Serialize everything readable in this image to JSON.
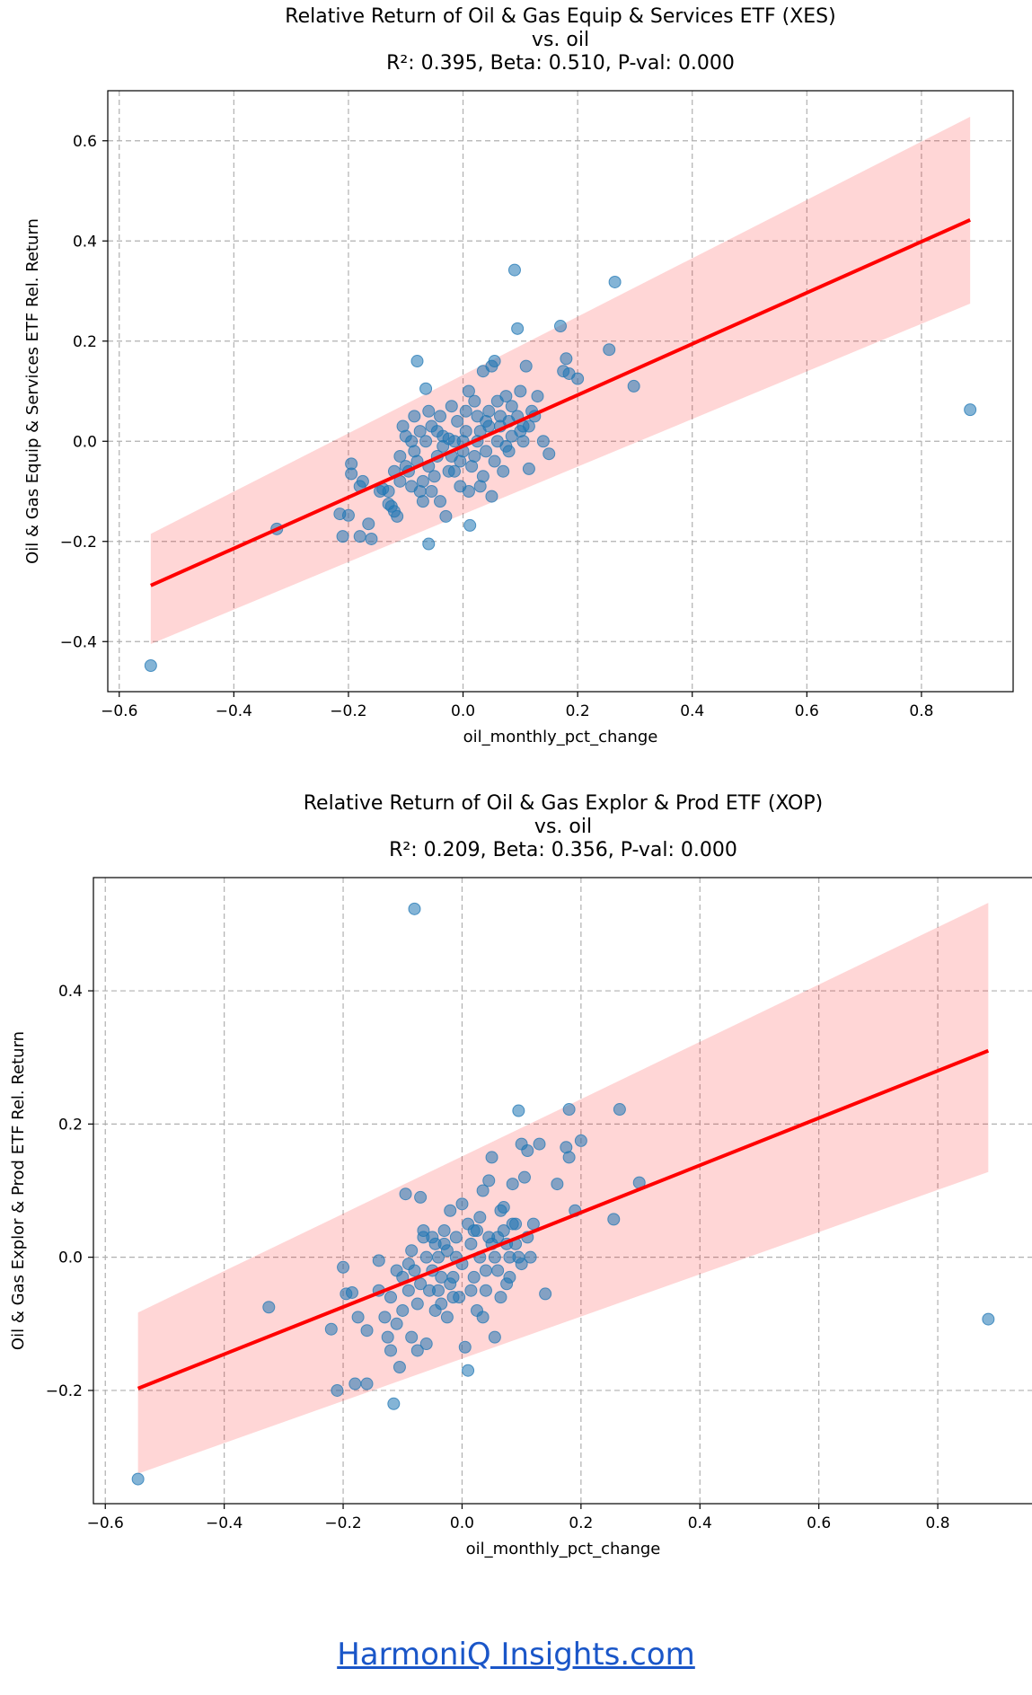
{
  "footer": {
    "link_text": "HarmoniQ Insights.com"
  },
  "chart_data": [
    {
      "type": "scatter",
      "title_lines": [
        "Relative Return of Oil & Gas Equip & Services ETF (XES)",
        "vs. oil",
        "R²: 0.395, Beta: 0.510, P-val: 0.000"
      ],
      "xlabel": "oil_monthly_pct_change",
      "ylabel": "Oil & Gas Equip & Services ETF Rel. Return",
      "xlim": [
        -0.62,
        0.96
      ],
      "ylim": [
        -0.5,
        0.7
      ],
      "xticks": [
        -0.6,
        -0.4,
        -0.2,
        0.0,
        0.2,
        0.4,
        0.6,
        0.8
      ],
      "yticks": [
        -0.4,
        -0.2,
        0.0,
        0.2,
        0.4,
        0.6
      ],
      "xtick_labels": [
        "−0.6",
        "−0.4",
        "−0.2",
        "0.0",
        "0.2",
        "0.4",
        "0.6",
        "0.8"
      ],
      "ytick_labels": [
        "−0.4",
        "−0.2",
        "0.0",
        "0.2",
        "0.4",
        "0.6"
      ],
      "grid": true,
      "regression": {
        "x": [
          -0.545,
          0.885
        ],
        "y": [
          -0.288,
          0.442
        ]
      },
      "ci_band": {
        "x": [
          -0.545,
          0.885
        ],
        "upper": [
          -0.185,
          0.648
        ],
        "lower": [
          -0.405,
          0.275
        ]
      },
      "points": [
        [
          -0.545,
          -0.448
        ],
        [
          -0.325,
          -0.175
        ],
        [
          -0.21,
          -0.19
        ],
        [
          -0.215,
          -0.145
        ],
        [
          -0.2,
          -0.148
        ],
        [
          -0.195,
          -0.045
        ],
        [
          -0.195,
          -0.065
        ],
        [
          -0.18,
          -0.19
        ],
        [
          -0.175,
          -0.08
        ],
        [
          -0.18,
          -0.09
        ],
        [
          -0.165,
          -0.165
        ],
        [
          -0.16,
          -0.195
        ],
        [
          -0.145,
          -0.1
        ],
        [
          -0.14,
          -0.095
        ],
        [
          -0.13,
          -0.125
        ],
        [
          -0.125,
          -0.13
        ],
        [
          -0.12,
          -0.14
        ],
        [
          -0.115,
          -0.15
        ],
        [
          -0.11,
          -0.03
        ],
        [
          -0.105,
          0.03
        ],
        [
          -0.1,
          0.01
        ],
        [
          -0.095,
          -0.06
        ],
        [
          -0.09,
          -0.09
        ],
        [
          -0.085,
          -0.02
        ],
        [
          -0.08,
          0.16
        ],
        [
          -0.075,
          0.02
        ],
        [
          -0.07,
          -0.12
        ],
        [
          -0.065,
          0.105
        ],
        [
          -0.06,
          -0.205
        ],
        [
          -0.06,
          -0.05
        ],
        [
          -0.055,
          -0.1
        ],
        [
          -0.05,
          -0.07
        ],
        [
          -0.045,
          0.02
        ],
        [
          -0.04,
          -0.12
        ],
        [
          -0.035,
          -0.01
        ],
        [
          -0.03,
          -0.15
        ],
        [
          -0.025,
          0.005
        ],
        [
          -0.02,
          -0.03
        ],
        [
          -0.015,
          -0.06
        ],
        [
          -0.01,
          0.04
        ],
        [
          -0.005,
          -0.09
        ],
        [
          0.0,
          0.0
        ],
        [
          0.005,
          0.02
        ],
        [
          0.01,
          -0.1
        ],
        [
          0.01,
          0.1
        ],
        [
          0.012,
          -0.168
        ],
        [
          0.02,
          -0.03
        ],
        [
          0.025,
          0.05
        ],
        [
          0.03,
          0.02
        ],
        [
          0.035,
          0.14
        ],
        [
          0.04,
          -0.02
        ],
        [
          0.045,
          0.06
        ],
        [
          0.05,
          0.15
        ],
        [
          0.055,
          0.16
        ],
        [
          0.06,
          0.0
        ],
        [
          0.065,
          0.03
        ],
        [
          0.07,
          -0.06
        ],
        [
          0.075,
          0.09
        ],
        [
          0.08,
          0.04
        ],
        [
          0.085,
          0.07
        ],
        [
          0.09,
          0.342
        ],
        [
          0.095,
          0.225
        ],
        [
          0.1,
          0.1
        ],
        [
          0.105,
          0.03
        ],
        [
          0.11,
          0.15
        ],
        [
          0.115,
          -0.055
        ],
        [
          0.12,
          0.06
        ],
        [
          0.13,
          0.09
        ],
        [
          0.14,
          0.0
        ],
        [
          0.15,
          -0.025
        ],
        [
          0.17,
          0.23
        ],
        [
          0.175,
          0.14
        ],
        [
          0.18,
          0.165
        ],
        [
          0.185,
          0.135
        ],
        [
          0.2,
          0.125
        ],
        [
          0.255,
          0.183
        ],
        [
          0.265,
          0.318
        ],
        [
          0.298,
          0.11
        ],
        [
          0.885,
          0.063
        ],
        [
          -0.09,
          0.0
        ],
        [
          -0.08,
          -0.04
        ],
        [
          -0.07,
          -0.08
        ],
        [
          -0.065,
          0.0
        ],
        [
          -0.055,
          0.03
        ],
        [
          -0.045,
          -0.03
        ],
        [
          -0.035,
          0.01
        ],
        [
          -0.025,
          -0.06
        ],
        [
          -0.015,
          0.0
        ],
        [
          -0.005,
          -0.04
        ],
        [
          0.005,
          0.06
        ],
        [
          0.015,
          -0.05
        ],
        [
          0.025,
          0.0
        ],
        [
          0.035,
          -0.07
        ],
        [
          0.045,
          0.03
        ],
        [
          0.055,
          -0.04
        ],
        [
          0.065,
          0.05
        ],
        [
          0.075,
          -0.01
        ],
        [
          0.085,
          0.01
        ],
        [
          0.095,
          0.05
        ],
        [
          0.105,
          0.0
        ],
        [
          0.115,
          0.03
        ],
        [
          0.125,
          0.05
        ],
        [
          -0.1,
          -0.05
        ],
        [
          -0.11,
          -0.08
        ],
        [
          -0.12,
          -0.06
        ],
        [
          -0.13,
          -0.1
        ],
        [
          -0.085,
          0.05
        ],
        [
          -0.075,
          -0.1
        ],
        [
          -0.06,
          0.06
        ],
        [
          0.0,
          -0.02
        ],
        [
          0.02,
          0.08
        ],
        [
          0.04,
          0.04
        ],
        [
          0.06,
          0.08
        ],
        [
          0.08,
          -0.02
        ],
        [
          0.1,
          0.02
        ],
        [
          0.03,
          -0.09
        ],
        [
          0.05,
          -0.11
        ],
        [
          -0.02,
          0.07
        ],
        [
          -0.04,
          0.05
        ]
      ]
    },
    {
      "type": "scatter",
      "title_lines": [
        "Relative Return of Oil & Gas Explor & Prod ETF (XOP)",
        "vs. oil",
        "R²: 0.209, Beta: 0.356, P-val: 0.000"
      ],
      "xlabel": "oil_monthly_pct_change",
      "ylabel": "Oil & Gas Explor & Prod ETF Rel. Return",
      "xlim": [
        -0.62,
        0.96
      ],
      "ylim": [
        -0.37,
        0.57
      ],
      "xticks": [
        -0.6,
        -0.4,
        -0.2,
        0.0,
        0.2,
        0.4,
        0.6,
        0.8
      ],
      "yticks": [
        -0.2,
        0.0,
        0.2,
        0.4
      ],
      "xtick_labels": [
        "−0.6",
        "−0.4",
        "−0.2",
        "0.0",
        "0.2",
        "0.4",
        "0.6",
        "0.8"
      ],
      "ytick_labels": [
        "−0.2",
        "0.0",
        "0.2",
        "0.4"
      ],
      "grid": true,
      "regression": {
        "x": [
          -0.545,
          0.885
        ],
        "y": [
          -0.197,
          0.31
        ]
      },
      "ci_band": {
        "x": [
          -0.545,
          0.885
        ],
        "upper": [
          -0.083,
          0.532
        ],
        "lower": [
          -0.325,
          0.128
        ]
      },
      "points": [
        [
          -0.545,
          -0.333
        ],
        [
          -0.325,
          -0.075
        ],
        [
          -0.22,
          -0.108
        ],
        [
          -0.21,
          -0.2
        ],
        [
          -0.2,
          -0.015
        ],
        [
          -0.195,
          -0.055
        ],
        [
          -0.185,
          -0.053
        ],
        [
          -0.18,
          -0.19
        ],
        [
          -0.175,
          -0.09
        ],
        [
          -0.16,
          -0.19
        ],
        [
          -0.16,
          -0.11
        ],
        [
          -0.14,
          -0.005
        ],
        [
          -0.14,
          -0.05
        ],
        [
          -0.13,
          -0.09
        ],
        [
          -0.125,
          -0.12
        ],
        [
          -0.12,
          -0.14
        ],
        [
          -0.115,
          -0.22
        ],
        [
          -0.11,
          -0.1
        ],
        [
          -0.105,
          -0.165
        ],
        [
          -0.1,
          -0.03
        ],
        [
          -0.095,
          0.095
        ],
        [
          -0.09,
          -0.01
        ],
        [
          -0.085,
          -0.12
        ],
        [
          -0.08,
          0.523
        ],
        [
          -0.075,
          -0.14
        ],
        [
          -0.07,
          0.09
        ],
        [
          -0.065,
          0.03
        ],
        [
          -0.06,
          -0.13
        ],
        [
          -0.055,
          -0.05
        ],
        [
          -0.05,
          0.03
        ],
        [
          -0.045,
          -0.08
        ],
        [
          -0.04,
          0.0
        ],
        [
          -0.035,
          -0.07
        ],
        [
          -0.03,
          0.04
        ],
        [
          -0.025,
          -0.09
        ],
        [
          -0.02,
          0.07
        ],
        [
          -0.015,
          -0.03
        ],
        [
          -0.01,
          0.0
        ],
        [
          -0.005,
          -0.06
        ],
        [
          0.0,
          0.08
        ],
        [
          0.005,
          -0.135
        ],
        [
          0.01,
          -0.17
        ],
        [
          0.015,
          -0.05
        ],
        [
          0.02,
          0.04
        ],
        [
          0.025,
          -0.08
        ],
        [
          0.03,
          0.0
        ],
        [
          0.035,
          0.1
        ],
        [
          0.04,
          -0.02
        ],
        [
          0.045,
          0.115
        ],
        [
          0.05,
          0.15
        ],
        [
          0.055,
          -0.12
        ],
        [
          0.06,
          0.03
        ],
        [
          0.065,
          -0.06
        ],
        [
          0.07,
          0.075
        ],
        [
          0.075,
          0.02
        ],
        [
          0.08,
          -0.03
        ],
        [
          0.085,
          0.11
        ],
        [
          0.09,
          0.05
        ],
        [
          0.095,
          0.22
        ],
        [
          0.1,
          0.17
        ],
        [
          0.105,
          0.12
        ],
        [
          0.11,
          0.16
        ],
        [
          0.115,
          0.0
        ],
        [
          0.12,
          0.05
        ],
        [
          0.13,
          0.17
        ],
        [
          0.14,
          -0.055
        ],
        [
          0.16,
          0.11
        ],
        [
          0.175,
          0.165
        ],
        [
          0.18,
          0.15
        ],
        [
          0.18,
          0.222
        ],
        [
          0.19,
          0.07
        ],
        [
          0.2,
          0.175
        ],
        [
          0.255,
          0.057
        ],
        [
          0.265,
          0.222
        ],
        [
          0.298,
          0.112
        ],
        [
          0.885,
          -0.093
        ],
        [
          -0.09,
          -0.05
        ],
        [
          -0.08,
          -0.02
        ],
        [
          -0.07,
          -0.04
        ],
        [
          -0.06,
          0.0
        ],
        [
          -0.05,
          -0.02
        ],
        [
          -0.04,
          -0.05
        ],
        [
          -0.03,
          0.02
        ],
        [
          -0.02,
          -0.04
        ],
        [
          -0.01,
          0.03
        ],
        [
          0.0,
          -0.01
        ],
        [
          0.01,
          0.05
        ],
        [
          0.02,
          -0.03
        ],
        [
          0.03,
          0.06
        ],
        [
          0.04,
          -0.05
        ],
        [
          0.05,
          0.02
        ],
        [
          0.06,
          -0.02
        ],
        [
          0.07,
          0.04
        ],
        [
          0.08,
          0.0
        ],
        [
          0.09,
          0.02
        ],
        [
          0.1,
          -0.01
        ],
        [
          0.11,
          0.03
        ],
        [
          -0.1,
          -0.08
        ],
        [
          -0.11,
          -0.02
        ],
        [
          -0.12,
          -0.06
        ],
        [
          -0.085,
          0.01
        ],
        [
          -0.075,
          -0.07
        ],
        [
          -0.065,
          0.04
        ],
        [
          0.015,
          0.02
        ],
        [
          0.025,
          0.04
        ],
        [
          0.035,
          -0.09
        ],
        [
          0.045,
          0.03
        ],
        [
          0.055,
          0.0
        ],
        [
          0.065,
          0.07
        ],
        [
          0.075,
          -0.04
        ],
        [
          0.085,
          0.05
        ],
        [
          0.095,
          0.0
        ],
        [
          -0.045,
          0.02
        ],
        [
          -0.035,
          -0.03
        ],
        [
          -0.025,
          0.01
        ],
        [
          -0.015,
          -0.06
        ]
      ]
    }
  ]
}
